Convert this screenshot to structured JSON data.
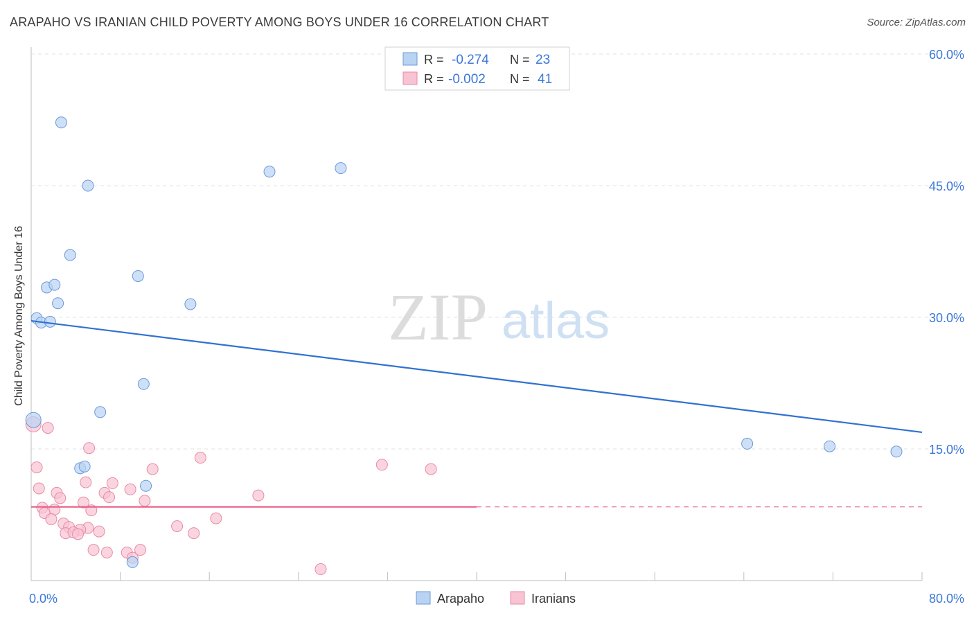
{
  "header": {
    "title": "ARAPAHO VS IRANIAN CHILD POVERTY AMONG BOYS UNDER 16 CORRELATION CHART",
    "source": "Source: ZipAtlas.com"
  },
  "watermark": {
    "zip": "ZIP",
    "atlas": "atlas"
  },
  "legend_box": {
    "rows": [
      {
        "r_label": "R =",
        "r_value": "-0.274",
        "n_label": "N =",
        "n_value": "23"
      },
      {
        "r_label": "R =",
        "r_value": "-0.002",
        "n_label": "N =",
        "n_value": "41"
      }
    ]
  },
  "colors": {
    "arapaho_fill": "#b9d3f3",
    "arapaho_stroke": "#6b9ad8",
    "arapaho_line": "#2f72d0",
    "iranian_fill": "#f8c3d3",
    "iranian_stroke": "#e88aa6",
    "iranian_line": "#e8628c",
    "axis_label": "#3c78d8"
  },
  "chart_data": {
    "type": "scatter",
    "title": "ARAPAHO VS IRANIAN CHILD POVERTY AMONG BOYS UNDER 16 CORRELATION CHART",
    "xlabel": "",
    "ylabel": "Child Poverty Among Boys Under 16",
    "xlim": [
      0,
      80
    ],
    "ylim": [
      0,
      60
    ],
    "x_tick_labels": [
      "0.0%",
      "80.0%"
    ],
    "y_tick_labels": [
      "15.0%",
      "30.0%",
      "45.0%",
      "60.0%"
    ],
    "y_ticks": [
      15,
      30,
      45,
      60
    ],
    "grid": true,
    "legend_position": "bottom-center",
    "series": [
      {
        "name": "Arapaho",
        "points": [
          [
            2.7,
            52.2
          ],
          [
            5.1,
            45.0
          ],
          [
            21.4,
            46.6
          ],
          [
            27.8,
            47.0
          ],
          [
            3.5,
            37.1
          ],
          [
            9.6,
            34.7
          ],
          [
            1.4,
            33.4
          ],
          [
            2.1,
            33.7
          ],
          [
            2.4,
            31.6
          ],
          [
            14.3,
            31.5
          ],
          [
            0.5,
            29.9
          ],
          [
            0.9,
            29.4
          ],
          [
            1.7,
            29.5
          ],
          [
            10.1,
            22.4
          ],
          [
            6.2,
            19.2
          ],
          [
            0.2,
            18.3
          ],
          [
            4.4,
            12.8
          ],
          [
            4.8,
            13.0
          ],
          [
            10.3,
            10.8
          ],
          [
            64.3,
            15.6
          ],
          [
            71.7,
            15.3
          ],
          [
            77.7,
            14.7
          ],
          [
            9.1,
            2.1
          ]
        ],
        "trend": {
          "x": [
            0,
            80
          ],
          "y": [
            29.6,
            16.9
          ]
        }
      },
      {
        "name": "Iranians",
        "points": [
          [
            0.2,
            17.8
          ],
          [
            1.5,
            17.4
          ],
          [
            0.5,
            12.9
          ],
          [
            5.2,
            15.1
          ],
          [
            15.2,
            14.0
          ],
          [
            31.5,
            13.2
          ],
          [
            35.9,
            12.7
          ],
          [
            10.9,
            12.7
          ],
          [
            4.9,
            11.2
          ],
          [
            7.3,
            11.1
          ],
          [
            0.7,
            10.5
          ],
          [
            8.9,
            10.4
          ],
          [
            6.6,
            10.0
          ],
          [
            2.3,
            10.0
          ],
          [
            2.6,
            9.4
          ],
          [
            7.0,
            9.5
          ],
          [
            20.4,
            9.7
          ],
          [
            4.7,
            8.9
          ],
          [
            10.2,
            9.1
          ],
          [
            1.0,
            8.3
          ],
          [
            2.1,
            8.1
          ],
          [
            5.4,
            8.0
          ],
          [
            1.2,
            7.7
          ],
          [
            1.8,
            7.0
          ],
          [
            16.6,
            7.1
          ],
          [
            2.9,
            6.5
          ],
          [
            3.4,
            6.1
          ],
          [
            13.1,
            6.2
          ],
          [
            5.1,
            6.0
          ],
          [
            4.4,
            5.8
          ],
          [
            6.1,
            5.6
          ],
          [
            3.1,
            5.4
          ],
          [
            3.8,
            5.5
          ],
          [
            4.2,
            5.3
          ],
          [
            14.6,
            5.4
          ],
          [
            5.6,
            3.5
          ],
          [
            6.8,
            3.2
          ],
          [
            8.6,
            3.2
          ],
          [
            9.8,
            3.5
          ],
          [
            9.1,
            2.6
          ],
          [
            26.0,
            1.3
          ]
        ],
        "trend": {
          "x": [
            0,
            80
          ],
          "y": [
            8.4,
            8.4
          ]
        }
      }
    ]
  }
}
